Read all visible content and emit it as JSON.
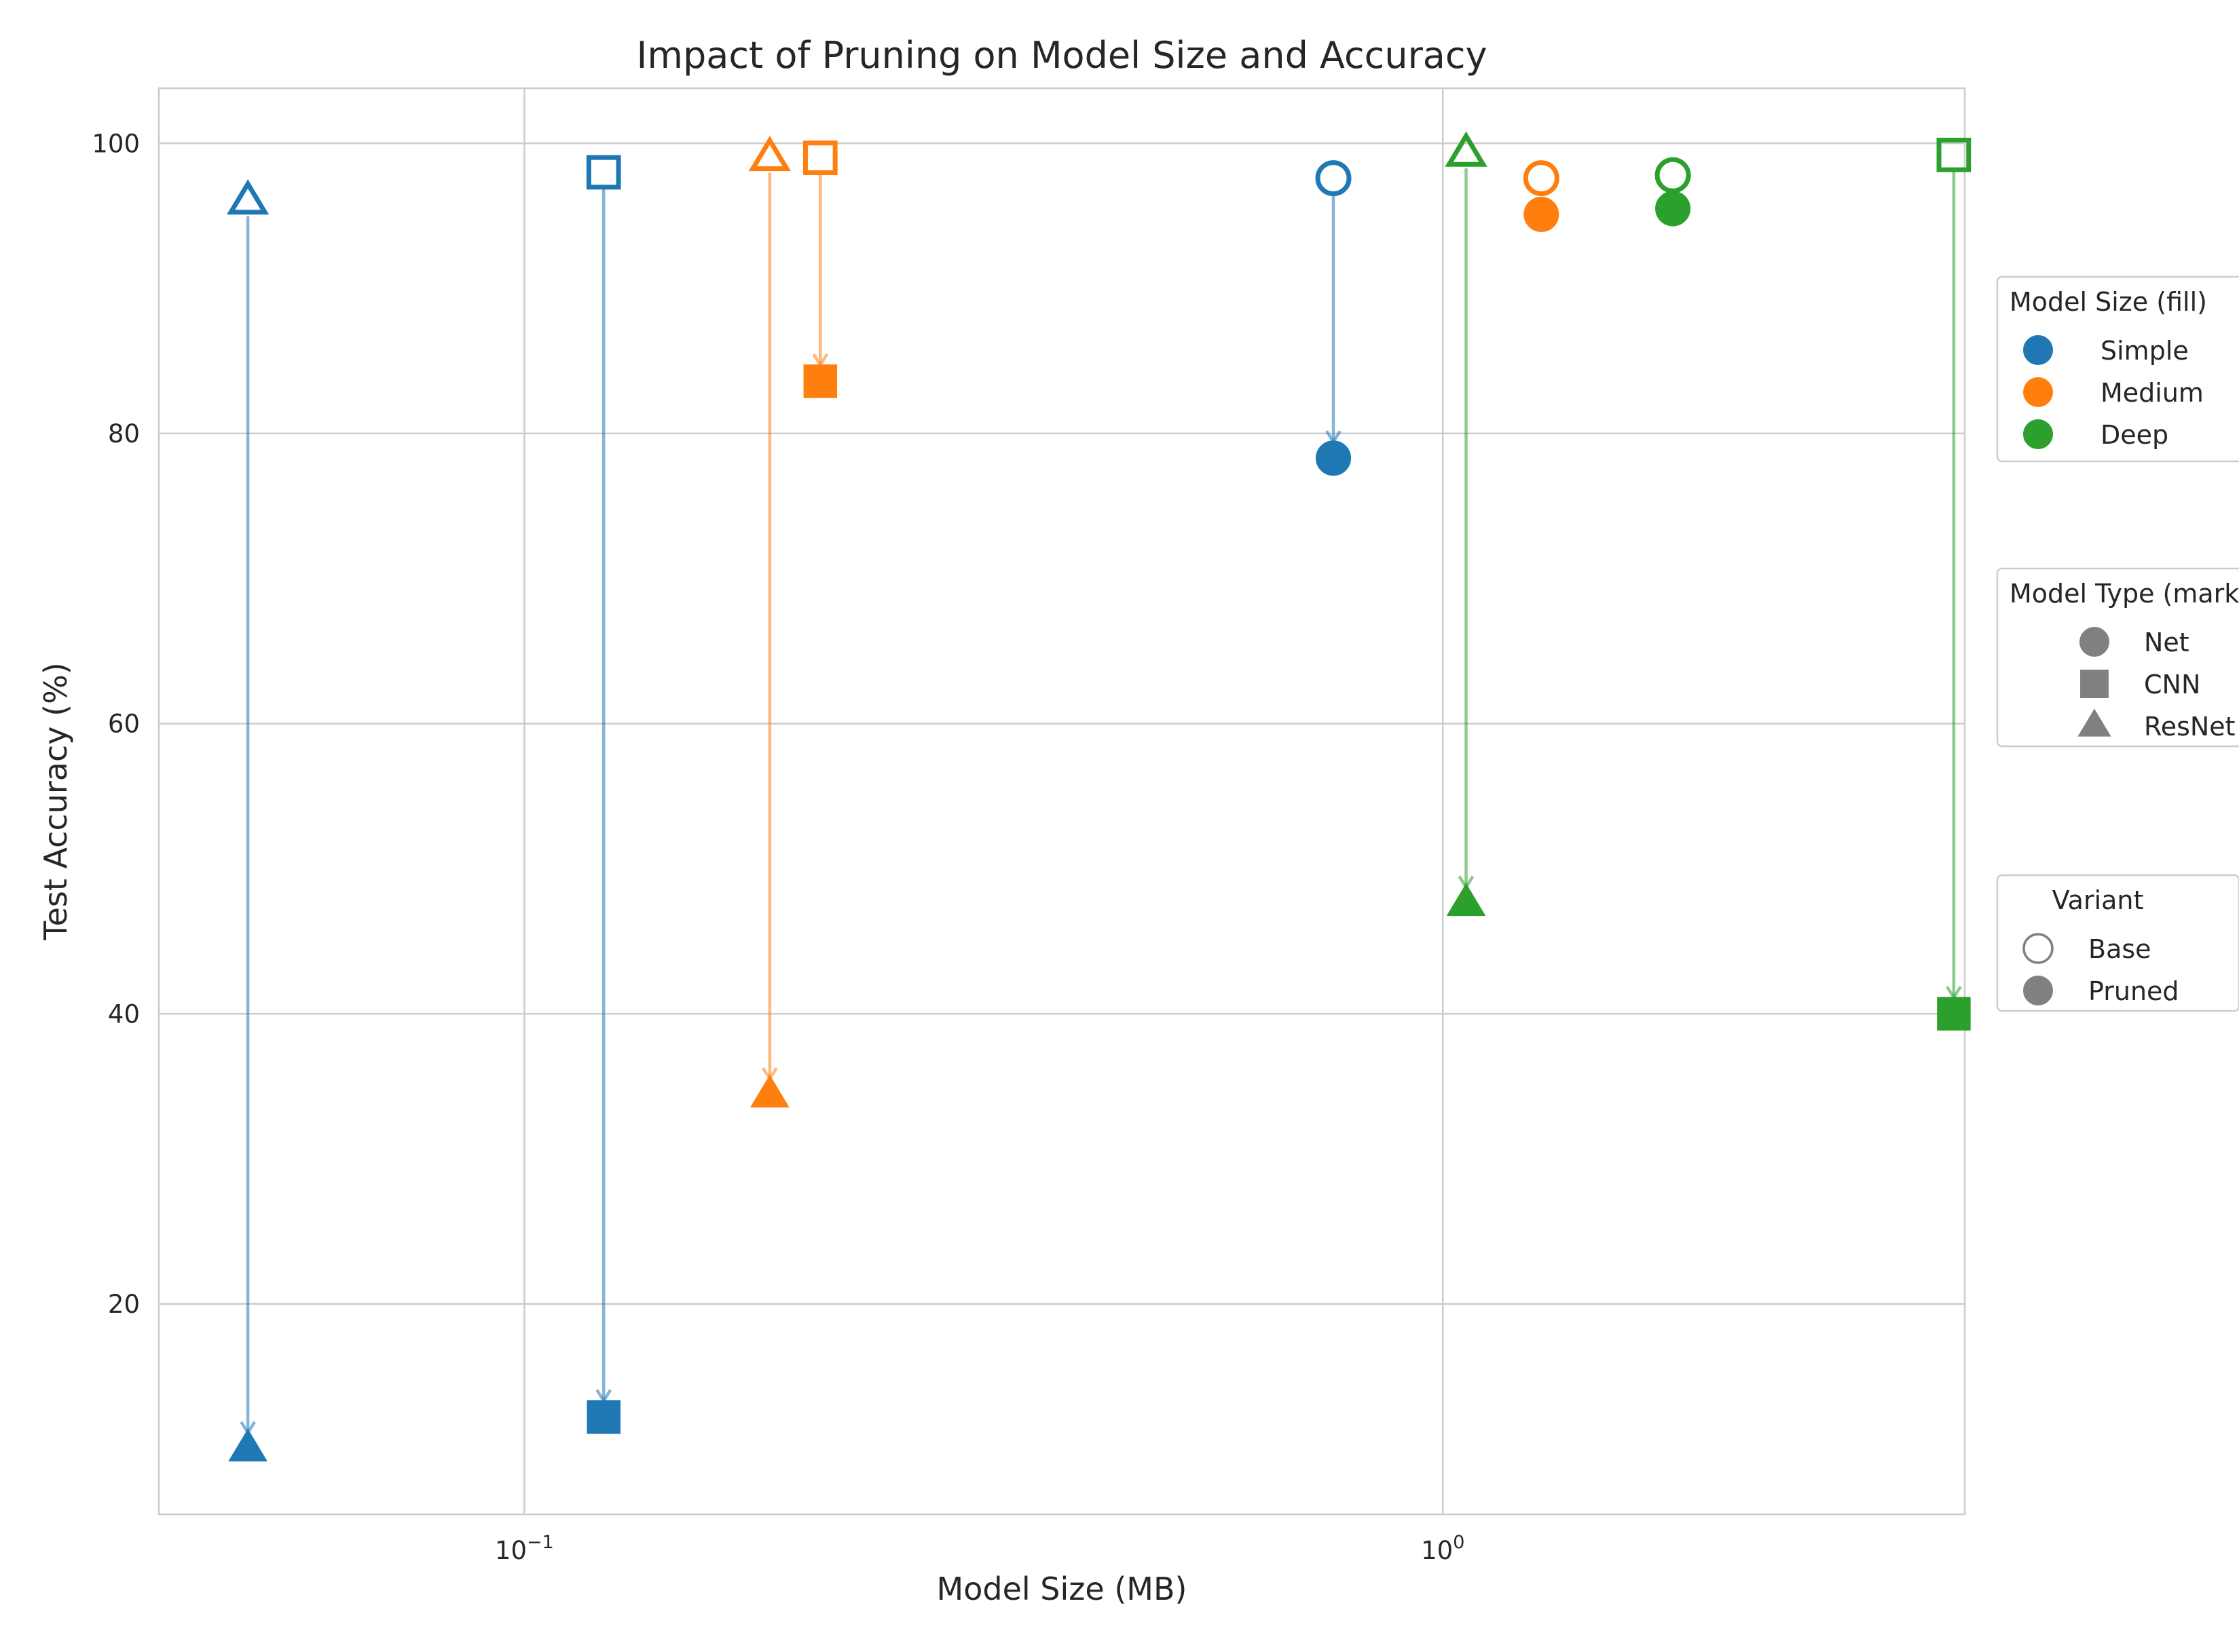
{
  "chart_data": {
    "type": "scatter",
    "title": "Impact of Pruning on Model Size and Accuracy",
    "xlabel": "Model Size (MB)",
    "ylabel": "Test Accuracy (%)",
    "x_scale": "log",
    "xlim": [
      0.04,
      3.7
    ],
    "ylim": [
      5.5,
      103.8
    ],
    "x_ticks": [
      {
        "value": 0.1,
        "base": "10",
        "exp": "−1"
      },
      {
        "value": 1,
        "base": "10",
        "exp": "0"
      }
    ],
    "y_ticks": [
      20,
      40,
      60,
      80,
      100
    ],
    "grid": true,
    "colors": {
      "Simple": "#1f77b4",
      "Medium": "#ff7f0e",
      "Deep": "#2ca02c",
      "neutral": "#808080"
    },
    "series": [
      {
        "size_class": "Simple",
        "model_type": "Net",
        "base": {
          "x": 0.76,
          "y": 97.6
        },
        "pruned": {
          "x": 0.76,
          "y": 78.3
        }
      },
      {
        "size_class": "Simple",
        "model_type": "CNN",
        "base": {
          "x": 0.122,
          "y": 98.0
        },
        "pruned": {
          "x": 0.122,
          "y": 12.2
        }
      },
      {
        "size_class": "Simple",
        "model_type": "ResNet",
        "base": {
          "x": 0.05,
          "y": 96.0
        },
        "pruned": {
          "x": 0.05,
          "y": 10.0
        }
      },
      {
        "size_class": "Medium",
        "model_type": "Net",
        "base": {
          "x": 1.28,
          "y": 97.6
        },
        "pruned": {
          "x": 1.28,
          "y": 95.1
        }
      },
      {
        "size_class": "Medium",
        "model_type": "CNN",
        "base": {
          "x": 0.21,
          "y": 99.0
        },
        "pruned": {
          "x": 0.21,
          "y": 83.6
        }
      },
      {
        "size_class": "Medium",
        "model_type": "ResNet",
        "base": {
          "x": 0.185,
          "y": 99.0
        },
        "pruned": {
          "x": 0.185,
          "y": 34.4
        }
      },
      {
        "size_class": "Deep",
        "model_type": "Net",
        "base": {
          "x": 1.78,
          "y": 97.8
        },
        "pruned": {
          "x": 1.78,
          "y": 95.5
        }
      },
      {
        "size_class": "Deep",
        "model_type": "CNN",
        "base": {
          "x": 3.6,
          "y": 99.2
        },
        "pruned": {
          "x": 3.6,
          "y": 40.0
        }
      },
      {
        "size_class": "Deep",
        "model_type": "ResNet",
        "base": {
          "x": 1.06,
          "y": 99.3
        },
        "pruned": {
          "x": 1.06,
          "y": 47.6
        }
      }
    ],
    "legends": [
      {
        "title": "Model Size (fill)",
        "entries": [
          {
            "label": "Simple",
            "marker": "circle",
            "color": "#1f77b4",
            "filled": true
          },
          {
            "label": "Medium",
            "marker": "circle",
            "color": "#ff7f0e",
            "filled": true
          },
          {
            "label": "Deep",
            "marker": "circle",
            "color": "#2ca02c",
            "filled": true
          }
        ]
      },
      {
        "title": "Model Type (marker)",
        "entries": [
          {
            "label": "Net",
            "marker": "circle",
            "color": "#808080",
            "filled": true
          },
          {
            "label": "CNN",
            "marker": "square",
            "color": "#808080",
            "filled": true
          },
          {
            "label": "ResNet",
            "marker": "triangle",
            "color": "#808080",
            "filled": true
          }
        ]
      },
      {
        "title": "Variant",
        "entries": [
          {
            "label": "Base",
            "marker": "circle",
            "color": "#808080",
            "filled": false
          },
          {
            "label": "Pruned",
            "marker": "circle",
            "color": "#808080",
            "filled": true
          }
        ]
      }
    ]
  }
}
